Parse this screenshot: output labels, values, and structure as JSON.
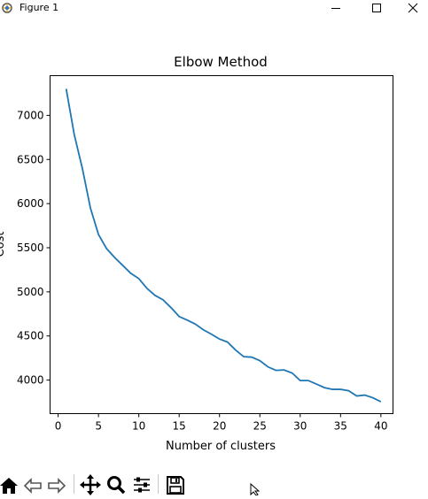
{
  "window": {
    "title": "Figure 1",
    "icons": [
      "figure-app-icon",
      "minimize-icon",
      "maximize-icon",
      "close-icon"
    ]
  },
  "chart_data": {
    "type": "line",
    "title": "Elbow Method",
    "xlabel": "Number of clusters",
    "ylabel": "Cost",
    "xlim": [
      -1,
      41.5
    ],
    "ylim": [
      3620,
      7450
    ],
    "xticks": [
      0,
      5,
      10,
      15,
      20,
      25,
      30,
      35,
      40
    ],
    "yticks": [
      4000,
      4500,
      5000,
      5500,
      6000,
      6500,
      7000
    ],
    "grid": false,
    "color": "#1f77b4",
    "series": [
      {
        "x": [
          1,
          2,
          3,
          4,
          5,
          6,
          7,
          8,
          9,
          10,
          11,
          12,
          13,
          14,
          15,
          16,
          17,
          18,
          19,
          20,
          21,
          22,
          23,
          24,
          25,
          26,
          27,
          28,
          29,
          30,
          31,
          32,
          33,
          34,
          35,
          36,
          37,
          38,
          39,
          40
        ],
        "values": [
          7300,
          6780,
          6400,
          5950,
          5650,
          5490,
          5390,
          5300,
          5210,
          5150,
          5040,
          4960,
          4910,
          4820,
          4720,
          4680,
          4635,
          4570,
          4520,
          4465,
          4430,
          4340,
          4265,
          4260,
          4220,
          4150,
          4110,
          4115,
          4080,
          3995,
          3995,
          3955,
          3915,
          3895,
          3895,
          3880,
          3820,
          3830,
          3800,
          3755
        ]
      }
    ]
  },
  "toolbar": {
    "icons": [
      "home-icon",
      "back-icon",
      "forward-icon",
      "pan-icon",
      "zoom-icon",
      "configure-subplots-icon",
      "save-icon"
    ]
  }
}
